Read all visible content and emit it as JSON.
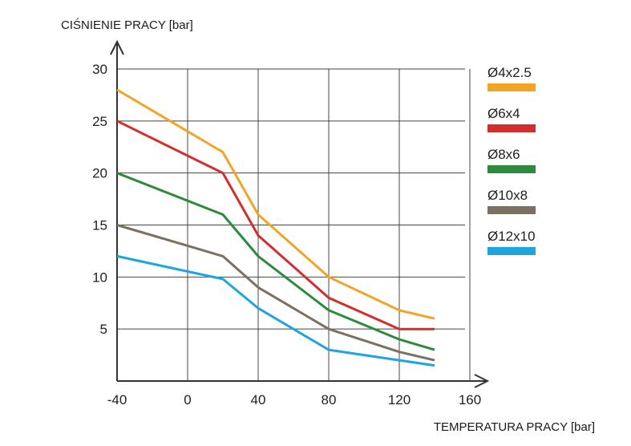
{
  "chart_data": {
    "type": "line",
    "ylabel": "CIŚNIENIE PRACY [bar]",
    "xlabel": "TEMPERATURA PRACY [bar]",
    "xlim": [
      -40,
      160
    ],
    "ylim": [
      0,
      30
    ],
    "x_ticks": [
      -40,
      0,
      40,
      80,
      120,
      160
    ],
    "y_ticks": [
      5,
      10,
      15,
      20,
      25,
      30
    ],
    "grid": true,
    "legend_position": "right",
    "series": [
      {
        "name": "Ø4x2.5",
        "color": "#f0a526",
        "x": [
          -40,
          20,
          40,
          80,
          120,
          140
        ],
        "y": [
          28,
          22,
          16,
          10,
          6.8,
          6
        ]
      },
      {
        "name": "Ø6x4",
        "color": "#d32e2e",
        "x": [
          -40,
          20,
          40,
          80,
          120,
          140
        ],
        "y": [
          25,
          20,
          14,
          8,
          5,
          5
        ]
      },
      {
        "name": "Ø8x6",
        "color": "#2e8b3d",
        "x": [
          -40,
          20,
          40,
          80,
          120,
          140
        ],
        "y": [
          20,
          16,
          12,
          6.8,
          4,
          3
        ]
      },
      {
        "name": "Ø10x8",
        "color": "#7d7061",
        "x": [
          -40,
          20,
          40,
          80,
          120,
          140
        ],
        "y": [
          15,
          12,
          9,
          5,
          2.8,
          2
        ]
      },
      {
        "name": "Ø12x10",
        "color": "#1ea5e0",
        "x": [
          -40,
          20,
          40,
          80,
          120,
          140
        ],
        "y": [
          12,
          9.8,
          7,
          3,
          2,
          1.5
        ]
      }
    ]
  }
}
